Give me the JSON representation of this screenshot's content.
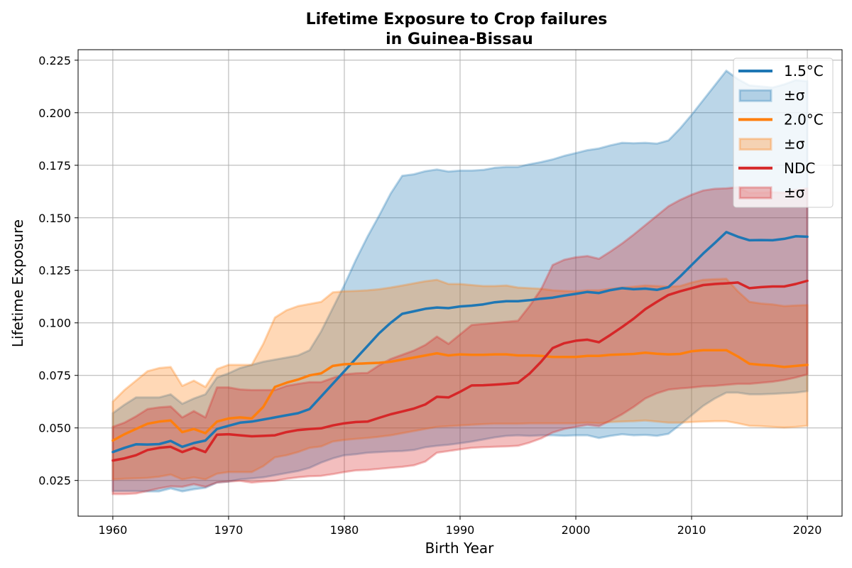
{
  "chart_data": {
    "type": "line",
    "title_line1": "Lifetime Exposure to Crop failures",
    "title_line2": "in Guinea-Bissau",
    "xlabel": "Birth Year",
    "ylabel": "Lifetime Exposure",
    "xlim": [
      1957,
      2023
    ],
    "ylim": [
      0.008,
      0.23
    ],
    "xticks": [
      1960,
      1970,
      1980,
      1990,
      2000,
      2010,
      2020
    ],
    "yticks": [
      0.025,
      0.05,
      0.075,
      0.1,
      0.125,
      0.15,
      0.175,
      0.2,
      0.225
    ],
    "xtick_labels": [
      "1960",
      "1970",
      "1980",
      "1990",
      "2000",
      "2010",
      "2020"
    ],
    "ytick_labels": [
      "0.025",
      "0.050",
      "0.075",
      "0.100",
      "0.125",
      "0.150",
      "0.175",
      "0.200",
      "0.225"
    ],
    "grid": true,
    "legend_position": "top-right",
    "legend_entries": [
      {
        "label": "1.5°C",
        "kind": "line",
        "color": "#1f77b4"
      },
      {
        "label": "±σ",
        "kind": "patch",
        "color": "#1f77b4"
      },
      {
        "label": "2.0°C",
        "kind": "line",
        "color": "#ff7f0e"
      },
      {
        "label": "±σ",
        "kind": "patch",
        "color": "#ff7f0e"
      },
      {
        "label": "NDC",
        "kind": "line",
        "color": "#d62728"
      },
      {
        "label": "±σ",
        "kind": "patch",
        "color": "#d62728"
      }
    ],
    "x": [
      1960,
      1961,
      1962,
      1963,
      1964,
      1965,
      1966,
      1967,
      1968,
      1969,
      1970,
      1971,
      1972,
      1973,
      1974,
      1975,
      1976,
      1977,
      1978,
      1979,
      1980,
      1981,
      1982,
      1983,
      1984,
      1985,
      1986,
      1987,
      1988,
      1989,
      1990,
      1991,
      1992,
      1993,
      1994,
      1995,
      1996,
      1997,
      1998,
      1999,
      2000,
      2001,
      2002,
      2003,
      2004,
      2005,
      2006,
      2007,
      2008,
      2009,
      2010,
      2011,
      2012,
      2013,
      2014,
      2015,
      2016,
      2017,
      2018,
      2019,
      2020
    ],
    "series": [
      {
        "name": "1.5°C",
        "color": "#1f77b4",
        "mean": [
          0.0385,
          0.0405,
          0.0422,
          0.0421,
          0.0423,
          0.0438,
          0.041,
          0.0428,
          0.044,
          0.0495,
          0.051,
          0.0525,
          0.053,
          0.054,
          0.055,
          0.056,
          0.057,
          0.059,
          0.065,
          0.071,
          0.077,
          0.083,
          0.089,
          0.095,
          0.1,
          0.1043,
          0.1055,
          0.1067,
          0.1073,
          0.107,
          0.1078,
          0.1082,
          0.1088,
          0.1098,
          0.1103,
          0.1103,
          0.1108,
          0.1115,
          0.112,
          0.113,
          0.1138,
          0.1147,
          0.1142,
          0.1156,
          0.1165,
          0.116,
          0.1163,
          0.1157,
          0.117,
          0.122,
          0.1275,
          0.133,
          0.138,
          0.1432,
          0.141,
          0.1393,
          0.1394,
          0.1393,
          0.14,
          0.1412,
          0.141
        ],
        "upper": [
          0.057,
          0.061,
          0.0645,
          0.0645,
          0.0645,
          0.066,
          0.0615,
          0.064,
          0.066,
          0.074,
          0.076,
          0.0785,
          0.08,
          0.0815,
          0.0825,
          0.0835,
          0.0845,
          0.087,
          0.096,
          0.107,
          0.118,
          0.13,
          0.141,
          0.151,
          0.1615,
          0.17,
          0.1707,
          0.1722,
          0.173,
          0.172,
          0.1725,
          0.1725,
          0.1728,
          0.1738,
          0.1742,
          0.1742,
          0.1755,
          0.1765,
          0.1778,
          0.1795,
          0.1808,
          0.1822,
          0.183,
          0.1845,
          0.1857,
          0.1855,
          0.1857,
          0.1853,
          0.1868,
          0.1925,
          0.199,
          0.206,
          0.213,
          0.22,
          0.216,
          0.213,
          0.2125,
          0.212,
          0.2135,
          0.2155,
          0.215
        ],
        "lower": [
          0.02,
          0.02,
          0.02,
          0.0198,
          0.0198,
          0.0212,
          0.0198,
          0.0208,
          0.0215,
          0.024,
          0.0245,
          0.0255,
          0.026,
          0.0265,
          0.0275,
          0.0285,
          0.0295,
          0.031,
          0.0335,
          0.0355,
          0.037,
          0.0375,
          0.0382,
          0.0385,
          0.0388,
          0.039,
          0.0395,
          0.0408,
          0.0415,
          0.042,
          0.0427,
          0.0435,
          0.0445,
          0.0455,
          0.0462,
          0.0465,
          0.0462,
          0.0465,
          0.0465,
          0.0463,
          0.0465,
          0.0465,
          0.0452,
          0.0462,
          0.047,
          0.0465,
          0.0467,
          0.0462,
          0.0472,
          0.0515,
          0.056,
          0.0605,
          0.064,
          0.0668,
          0.0668,
          0.066,
          0.066,
          0.0662,
          0.0665,
          0.0668,
          0.0675
        ]
      },
      {
        "name": "2.0°C",
        "color": "#ff7f0e",
        "mean": [
          0.044,
          0.047,
          0.0495,
          0.052,
          0.053,
          0.0535,
          0.048,
          0.0495,
          0.0475,
          0.053,
          0.0545,
          0.055,
          0.0545,
          0.06,
          0.0695,
          0.0715,
          0.073,
          0.075,
          0.076,
          0.0795,
          0.0803,
          0.0805,
          0.0808,
          0.081,
          0.0815,
          0.0825,
          0.0835,
          0.0845,
          0.0855,
          0.0845,
          0.085,
          0.0848,
          0.0848,
          0.085,
          0.085,
          0.0845,
          0.0845,
          0.0843,
          0.0838,
          0.0838,
          0.0838,
          0.0843,
          0.0843,
          0.0848,
          0.085,
          0.0852,
          0.0858,
          0.0853,
          0.085,
          0.0852,
          0.0865,
          0.087,
          0.087,
          0.087,
          0.084,
          0.0805,
          0.08,
          0.0797,
          0.079,
          0.0795,
          0.08
        ],
        "upper": [
          0.0625,
          0.068,
          0.0725,
          0.077,
          0.0785,
          0.079,
          0.07,
          0.0725,
          0.0695,
          0.078,
          0.08,
          0.08,
          0.08,
          0.09,
          0.1025,
          0.106,
          0.108,
          0.109,
          0.11,
          0.1145,
          0.115,
          0.1152,
          0.1155,
          0.116,
          0.1168,
          0.1178,
          0.1188,
          0.1198,
          0.1205,
          0.1185,
          0.1185,
          0.118,
          0.1175,
          0.1175,
          0.1178,
          0.1168,
          0.1165,
          0.1162,
          0.1155,
          0.1152,
          0.115,
          0.1155,
          0.1155,
          0.1162,
          0.1168,
          0.1172,
          0.1178,
          0.1175,
          0.1172,
          0.1175,
          0.1192,
          0.1205,
          0.1208,
          0.121,
          0.115,
          0.11,
          0.1092,
          0.1088,
          0.108,
          0.1083,
          0.1085
        ],
        "lower": [
          0.0255,
          0.0258,
          0.026,
          0.0262,
          0.0268,
          0.0278,
          0.0255,
          0.0265,
          0.0255,
          0.0282,
          0.029,
          0.029,
          0.029,
          0.0318,
          0.036,
          0.037,
          0.0385,
          0.0405,
          0.0412,
          0.0435,
          0.0443,
          0.0448,
          0.0452,
          0.0458,
          0.0465,
          0.0475,
          0.0485,
          0.0495,
          0.0505,
          0.0508,
          0.0512,
          0.0515,
          0.0518,
          0.052,
          0.052,
          0.052,
          0.0522,
          0.0522,
          0.0522,
          0.0522,
          0.0522,
          0.0525,
          0.0522,
          0.0528,
          0.053,
          0.0532,
          0.0535,
          0.053,
          0.0525,
          0.0525,
          0.0528,
          0.053,
          0.0532,
          0.0532,
          0.0522,
          0.051,
          0.0508,
          0.0505,
          0.0502,
          0.0505,
          0.051
        ]
      },
      {
        "name": "NDC",
        "color": "#d62728",
        "mean": [
          0.0345,
          0.0355,
          0.037,
          0.0395,
          0.0405,
          0.041,
          0.0385,
          0.0405,
          0.0385,
          0.0468,
          0.047,
          0.0465,
          0.046,
          0.0462,
          0.0465,
          0.048,
          0.049,
          0.0495,
          0.0498,
          0.0512,
          0.0522,
          0.0528,
          0.053,
          0.0548,
          0.0565,
          0.0578,
          0.0592,
          0.0612,
          0.0648,
          0.0645,
          0.0672,
          0.0702,
          0.0703,
          0.0706,
          0.071,
          0.0715,
          0.0758,
          0.0815,
          0.088,
          0.0903,
          0.0915,
          0.092,
          0.0908,
          0.0943,
          0.098,
          0.102,
          0.1065,
          0.11,
          0.1133,
          0.115,
          0.1165,
          0.118,
          0.1185,
          0.1188,
          0.1192,
          0.1165,
          0.117,
          0.1173,
          0.1173,
          0.1185,
          0.12
        ],
        "upper": [
          0.0505,
          0.0525,
          0.0555,
          0.059,
          0.0598,
          0.0602,
          0.055,
          0.058,
          0.055,
          0.0693,
          0.0693,
          0.0683,
          0.068,
          0.068,
          0.068,
          0.07,
          0.071,
          0.0718,
          0.0718,
          0.0738,
          0.0755,
          0.076,
          0.0762,
          0.0798,
          0.0828,
          0.0848,
          0.0868,
          0.0895,
          0.0935,
          0.09,
          0.0945,
          0.099,
          0.0995,
          0.1,
          0.1005,
          0.101,
          0.108,
          0.116,
          0.1275,
          0.13,
          0.1312,
          0.1318,
          0.1305,
          0.134,
          0.1378,
          0.142,
          0.1465,
          0.151,
          0.1555,
          0.1585,
          0.161,
          0.163,
          0.1638,
          0.164,
          0.1645,
          0.1618,
          0.162,
          0.1622,
          0.162,
          0.1632,
          0.164
        ],
        "lower": [
          0.0185,
          0.0185,
          0.0188,
          0.02,
          0.0212,
          0.0222,
          0.022,
          0.0232,
          0.022,
          0.024,
          0.0245,
          0.0248,
          0.024,
          0.0245,
          0.0248,
          0.0258,
          0.0265,
          0.027,
          0.0272,
          0.028,
          0.029,
          0.0298,
          0.03,
          0.0305,
          0.031,
          0.0315,
          0.0322,
          0.034,
          0.0382,
          0.039,
          0.0398,
          0.0405,
          0.0408,
          0.041,
          0.0412,
          0.0415,
          0.043,
          0.045,
          0.0478,
          0.0495,
          0.0505,
          0.0515,
          0.0508,
          0.0535,
          0.0565,
          0.06,
          0.064,
          0.0665,
          0.0682,
          0.0688,
          0.0692,
          0.0698,
          0.07,
          0.0705,
          0.071,
          0.071,
          0.0715,
          0.072,
          0.0728,
          0.074,
          0.0755
        ]
      }
    ]
  }
}
